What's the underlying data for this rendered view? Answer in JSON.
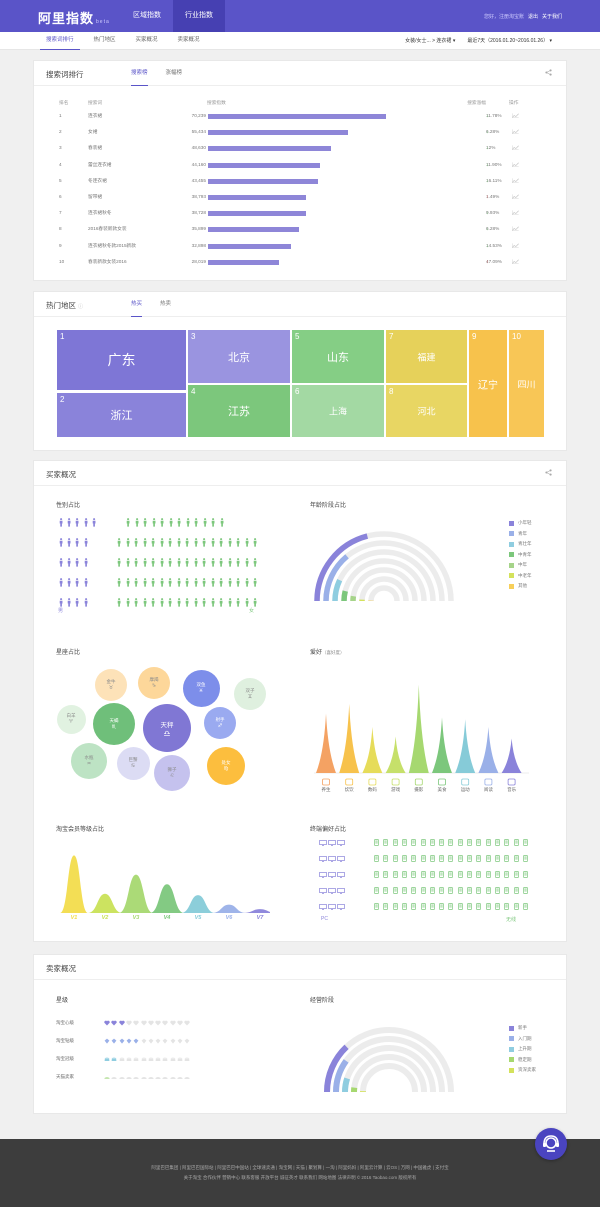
{
  "header": {
    "logo": "阿里指数",
    "logo_badge": "beta",
    "nav": [
      {
        "label": "区域指数",
        "active": false
      },
      {
        "label": "行业指数",
        "active": true
      }
    ],
    "greeting": "您好，",
    "username": "注册淘宝账",
    "logout": "退出",
    "about": "关于我们"
  },
  "subnav": {
    "tabs": [
      {
        "label": "搜索词排行",
        "active": true
      },
      {
        "label": "热门地区",
        "active": false
      },
      {
        "label": "买家概况",
        "active": false
      },
      {
        "label": "卖家概况",
        "active": false
      }
    ],
    "category": "女装/女士... > 连衣裙",
    "date_range": "最近7天（2016.01.20~2016.01.26）"
  },
  "search_rank": {
    "title": "搜索词排行",
    "tabs": [
      {
        "label": "搜索榜",
        "active": true
      },
      {
        "label": "涨幅榜",
        "active": false
      }
    ],
    "columns": {
      "rank": "排名",
      "term": "搜索词",
      "index": "搜索指数",
      "growth": "搜索涨幅",
      "op": "操作"
    },
    "rows": [
      {
        "rank": "1",
        "term": "连衣裙",
        "value": "70,239",
        "num": 70239,
        "growth": "11.78%",
        "dir": "down"
      },
      {
        "rank": "2",
        "term": "女裙",
        "value": "55,434",
        "num": 55434,
        "growth": "6.28%",
        "dir": "down"
      },
      {
        "rank": "3",
        "term": "春装裙",
        "value": "48,630",
        "num": 48630,
        "growth": "12%",
        "dir": "down"
      },
      {
        "rank": "4",
        "term": "蕾丝连衣裙",
        "value": "44,160",
        "num": 44160,
        "growth": "11.90%",
        "dir": "down"
      },
      {
        "rank": "5",
        "term": "冬连衣裙",
        "value": "43,455",
        "num": 43455,
        "growth": "16.11%",
        "dir": "down"
      },
      {
        "rank": "6",
        "term": "留带裙",
        "value": "38,793",
        "num": 38793,
        "growth": "1.49%",
        "dir": "up"
      },
      {
        "rank": "7",
        "term": "连衣裙秋冬",
        "value": "38,728",
        "num": 38728,
        "growth": "9.93%",
        "dir": "down"
      },
      {
        "rank": "8",
        "term": "2016春装新款女装",
        "value": "35,899",
        "num": 35899,
        "growth": "6.28%",
        "dir": "down"
      },
      {
        "rank": "9",
        "term": "连衣裙秋冬款2015新款",
        "value": "32,898",
        "num": 32898,
        "growth": "14.53%",
        "dir": "down"
      },
      {
        "rank": "10",
        "term": "春装新款女装2016",
        "value": "28,019",
        "num": 28019,
        "growth": "47.09%",
        "dir": "up"
      }
    ],
    "max": 70239
  },
  "hot_regions": {
    "title": "热门地区",
    "tabs": [
      {
        "label": "热买",
        "active": true
      },
      {
        "label": "热卖",
        "active": false
      }
    ],
    "cells": [
      {
        "n": "1",
        "label": "广东",
        "color": "#7e76d6"
      },
      {
        "n": "2",
        "label": "浙江",
        "color": "#8a83da"
      },
      {
        "n": "3",
        "label": "北京",
        "color": "#9a94e0"
      },
      {
        "n": "4",
        "label": "江苏",
        "color": "#7cc77c"
      },
      {
        "n": "5",
        "label": "山东",
        "color": "#85ce85"
      },
      {
        "n": "6",
        "label": "上海",
        "color": "#a3d9a3"
      },
      {
        "n": "7",
        "label": "福建",
        "color": "#e6d15a"
      },
      {
        "n": "8",
        "label": "河北",
        "color": "#e8d663"
      },
      {
        "n": "9",
        "label": "辽宁",
        "color": "#f7c24c"
      },
      {
        "n": "10",
        "label": "四川",
        "color": "#f8c656"
      }
    ]
  },
  "buyer": {
    "title": "买家概况",
    "gender": {
      "title": "性别占比",
      "male": "男",
      "female": "女",
      "male_count": 20,
      "female_count": 80
    },
    "age": {
      "title": "年龄阶段占比",
      "items": [
        {
          "label": "小年轻",
          "color": "#8a83da",
          "value": 0.42
        },
        {
          "label": "青年",
          "color": "#9ab0e8",
          "value": 0.28
        },
        {
          "label": "青壮年",
          "color": "#8fcde0",
          "value": 0.14
        },
        {
          "label": "中青年",
          "color": "#7cc77c",
          "value": 0.08
        },
        {
          "label": "中年",
          "color": "#a6d48a",
          "value": 0.05
        },
        {
          "label": "中老年",
          "color": "#d4e25c",
          "value": 0.02
        },
        {
          "label": "其他",
          "color": "#f7cf5a",
          "value": 0.01
        }
      ]
    },
    "constellation": {
      "title": "星座占比",
      "items": [
        {
          "label": "金牛",
          "sym": "♉",
          "color": "#fde2b8"
        },
        {
          "label": "摩羯",
          "sym": "♑",
          "color": "#fdd79a"
        },
        {
          "label": "双鱼",
          "sym": "♓",
          "color": "#7d8eea"
        },
        {
          "label": "双子",
          "sym": "♊",
          "color": "#dff0df"
        },
        {
          "label": "白羊",
          "sym": "♈",
          "color": "#e1f2e1"
        },
        {
          "label": "天蝎",
          "sym": "♏",
          "color": "#6fbf7a"
        },
        {
          "label": "天秤",
          "sym": "♎",
          "color": "#8077d4"
        },
        {
          "label": "射手",
          "sym": "♐",
          "color": "#9aaaf0"
        },
        {
          "label": "水瓶",
          "sym": "♒",
          "color": "#bde3c4"
        },
        {
          "label": "巨蟹",
          "sym": "♋",
          "color": "#dcdcf4"
        },
        {
          "label": "狮子",
          "sym": "♌",
          "color": "#c5c2ee"
        },
        {
          "label": "处女",
          "sym": "♍",
          "color": "#fcbe3e"
        }
      ]
    },
    "hobby": {
      "title": "爱好",
      "subtitle": "（喜好度）",
      "items": [
        {
          "label": "养生",
          "color": "#f4a263",
          "value": 0.62
        },
        {
          "label": "炊饮",
          "color": "#f7c24c",
          "value": 0.72
        },
        {
          "label": "数码",
          "color": "#e6dc5a",
          "value": 0.48
        },
        {
          "label": "游戏",
          "color": "#c6e06a",
          "value": 0.38
        },
        {
          "label": "摄影",
          "color": "#a6d870",
          "value": 0.92
        },
        {
          "label": "美食",
          "color": "#7cc77c",
          "value": 0.58
        },
        {
          "label": "运动",
          "color": "#86cbd8",
          "value": 0.56
        },
        {
          "label": "阅读",
          "color": "#9ab0e8",
          "value": 0.48
        },
        {
          "label": "音乐",
          "color": "#8a83da",
          "value": 0.36
        }
      ]
    },
    "vip": {
      "title": "淘宝会员等级占比",
      "levels": [
        "V1",
        "V2",
        "V3",
        "V4",
        "V5",
        "V6",
        "V7"
      ],
      "values": [
        0.9,
        0.3,
        0.6,
        0.45,
        0.28,
        0.13,
        0.06
      ],
      "colors": [
        "#f2dc4c",
        "#c9e257",
        "#a6d870",
        "#7cc77c",
        "#86cbd8",
        "#9ab0e8",
        "#8a83da"
      ]
    },
    "terminal": {
      "title": "终端偏好占比",
      "pc": "PC",
      "wireless": "无线",
      "pc_count": 15,
      "wireless_count": 85
    }
  },
  "seller": {
    "title": "卖家概况",
    "stars": {
      "title": "星级",
      "rows": [
        {
          "label": "淘宝心级",
          "filled": 3
        },
        {
          "label": "淘宝钻级",
          "filled": 5
        },
        {
          "label": "淘宝冠级",
          "filled": 2
        },
        {
          "label": "天猫卖家",
          "filled": 1
        }
      ]
    },
    "stage": {
      "title": "经营阶段",
      "items": [
        {
          "label": "新手",
          "color": "#8a83da",
          "value": 0.26
        },
        {
          "label": "入门期",
          "color": "#9ab0e8",
          "value": 0.2
        },
        {
          "label": "上升期",
          "color": "#8fcde0",
          "value": 0.1
        },
        {
          "label": "稳定期",
          "color": "#a6d870",
          "value": 0.04
        },
        {
          "label": "资深卖家",
          "color": "#d4e25c",
          "value": 0.01
        }
      ]
    }
  },
  "footer": {
    "line1": "阿里巴巴集团 | 阿里巴巴国际站 | 阿里巴巴中国站 | 全球速卖通 | 淘宝网 | 天猫 | 聚划算 | 一淘 | 阿里妈妈 | 阿里云计算 | 云OS | 万网 | 中国雅虎 | 支付宝",
    "line2": "关于淘宝  合作伙伴  营销中心  联系客服  开放平台  诚征英才  联系我们  网站地图  法律声明  © 2016 Taobao.com 版权所有"
  }
}
